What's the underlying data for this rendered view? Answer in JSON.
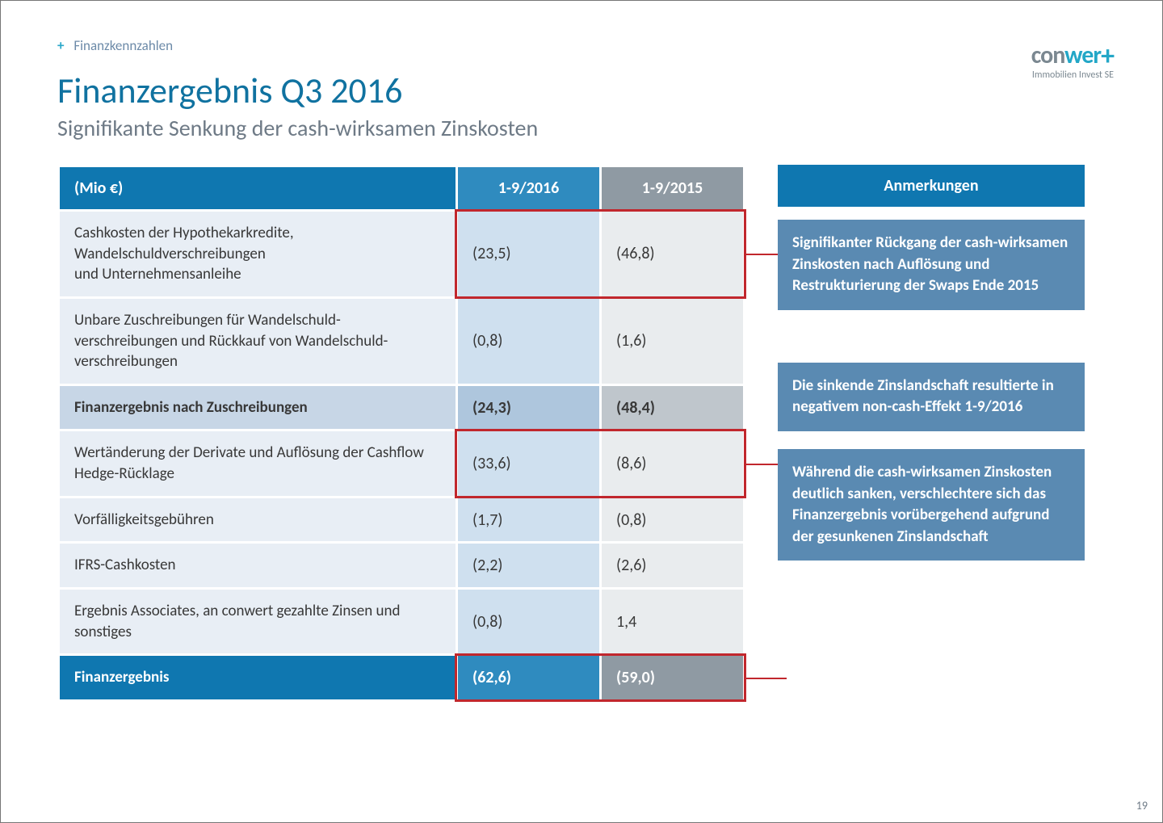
{
  "breadcrumb": {
    "plus": "+",
    "label": "Finanzkennzahlen"
  },
  "title": "Finanzergebnis Q3 2016",
  "subtitle": "Signifikante Senkung der cash-wirksamen Zinskosten",
  "logo": {
    "part1": "con",
    "part2": "wer",
    "plus": "+",
    "sub": "Immobilien Invest SE"
  },
  "page_number": "19",
  "table": {
    "header": {
      "label": "(Mio €)",
      "col_a": "1-9/2016",
      "col_b": "1-9/2015"
    },
    "rows": [
      {
        "type": "data",
        "label": "Cashkosten der Hypothekarkredite,\nWandelschuldverschreibungen\nund Unternehmensanleihe",
        "a": "(23,5)",
        "b": "(46,8)"
      },
      {
        "type": "data",
        "label": "Unbare Zuschreibungen für Wandelschuld-\nverschreibungen und Rückkauf von Wandelschuld-\nverschreibungen",
        "a": "(0,8)",
        "b": "(1,6)"
      },
      {
        "type": "sub",
        "label": "Finanzergebnis nach Zuschreibungen",
        "a": "(24,3)",
        "b": "(48,4)"
      },
      {
        "type": "data",
        "label": "Wertänderung der Derivate und Auflösung der Cashflow Hedge-Rücklage",
        "a": "(33,6)",
        "b": "(8,6)"
      },
      {
        "type": "data",
        "label": "Vorfälligkeitsgebühren",
        "a": "(1,7)",
        "b": "(0,8)"
      },
      {
        "type": "data",
        "label": "IFRS-Cashkosten",
        "a": "(2,2)",
        "b": "(2,6)"
      },
      {
        "type": "data",
        "label": "Ergebnis Associates, an conwert gezahlte Zinsen und sonstiges",
        "a": "(0,8)",
        "b": "1,4"
      },
      {
        "type": "total",
        "label": "Finanzergebnis",
        "a": "(62,6)",
        "b": "(59,0)"
      }
    ]
  },
  "notes": {
    "header": "Anmerkungen",
    "items": [
      "Signifikanter Rückgang der cash-wirksamen Zinskosten nach Auflösung und Restrukturierung der Swaps Ende 2015",
      "Die sinkende Zinslandschaft resultierte in negativem non-cash-Effekt  1-9/2016",
      "Während die cash-wirksamen Zinskosten deutlich sanken, verschlechtere sich das Finanzergebnis vorübergehend aufgrund der gesunkenen Zinslandschaft"
    ]
  },
  "highlights": [
    {
      "row": 0,
      "cols": "ab"
    },
    {
      "row": 3,
      "cols": "ab"
    },
    {
      "row": 7,
      "cols": "ab"
    }
  ],
  "colors": {
    "primary": "#0f77b0",
    "primary_mid": "#2f8bbf",
    "grey_header": "#8f9aa3",
    "note_bg": "#5a8ab2",
    "highlight_border": "#c1272d"
  }
}
